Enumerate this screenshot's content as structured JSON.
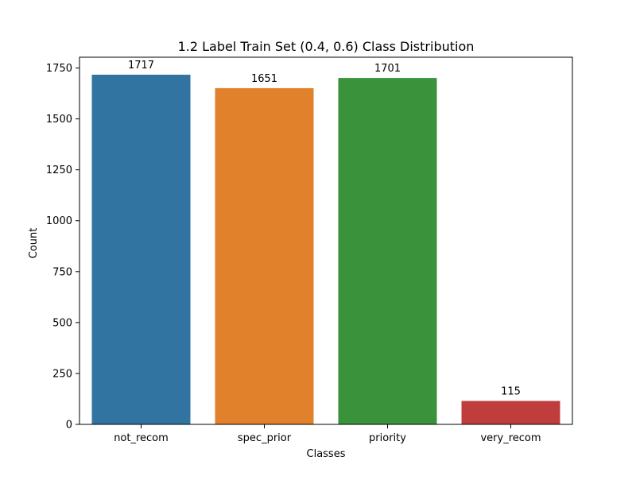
{
  "chart_data": {
    "type": "bar",
    "title": "1.2 Label Train Set (0.4, 0.6) Class Distribution",
    "xlabel": "Classes",
    "ylabel": "Count",
    "categories": [
      "not_recom",
      "spec_prior",
      "priority",
      "very_recom"
    ],
    "values": [
      1717,
      1651,
      1701,
      115
    ],
    "value_labels": [
      "1717",
      "1651",
      "1701",
      "115"
    ],
    "colors": [
      "#3274a1",
      "#e1812c",
      "#3a923a",
      "#c03d3e"
    ],
    "ylim": [
      0,
      1802.85
    ],
    "yticks": [
      0,
      250,
      500,
      750,
      1000,
      1250,
      1500,
      1750
    ],
    "ytick_labels": [
      "0",
      "250",
      "500",
      "750",
      "1000",
      "1250",
      "1500",
      "1750"
    ],
    "grid": false,
    "legend": "none"
  }
}
